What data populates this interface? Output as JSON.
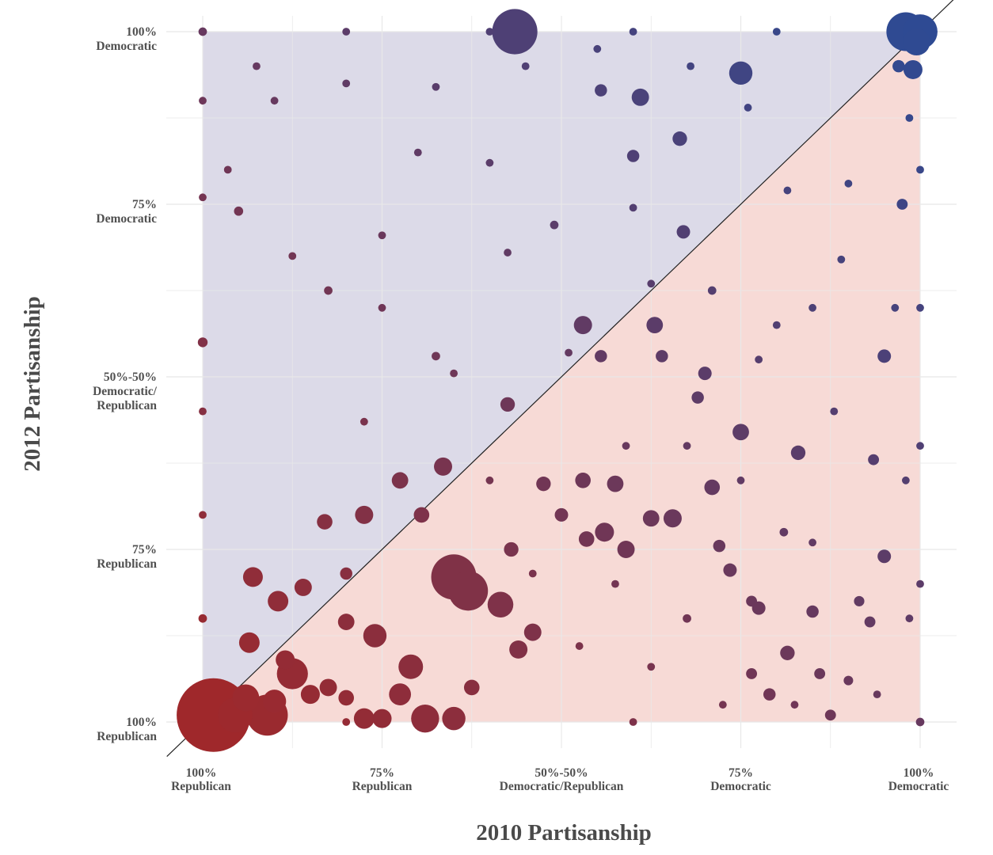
{
  "chart_data": {
    "type": "scatter",
    "title": "",
    "xlabel": "2010 Partisanship",
    "ylabel": "2012 Partisanship",
    "xlim": [
      -1,
      1
    ],
    "ylim": [
      -1,
      1
    ],
    "grid": true,
    "legend": "none",
    "reference_line": "y = x",
    "regions": [
      {
        "name": "above-diagonal",
        "color": "#dcdae8"
      },
      {
        "name": "below-diagonal",
        "color": "#f7dad6"
      }
    ],
    "colors": {
      "republican": "#a0282a",
      "democratic": "#2e4a93",
      "diagonal": "#222222",
      "grid": "#e8e8e8"
    },
    "x_ticks": [
      {
        "value": -1.0,
        "line1": "100%",
        "line2": "Republican"
      },
      {
        "value": -0.5,
        "line1": "75%",
        "line2": "Republican"
      },
      {
        "value": 0.0,
        "line1": "50%-50%",
        "line2": "Democratic/Republican"
      },
      {
        "value": 0.5,
        "line1": "75%",
        "line2": "Democratic"
      },
      {
        "value": 1.0,
        "line1": "100%",
        "line2": "Democratic"
      }
    ],
    "y_ticks": [
      {
        "value": 1.0,
        "lines": [
          "100%",
          "Democratic"
        ]
      },
      {
        "value": 0.5,
        "lines": [
          "75%",
          "Democratic"
        ]
      },
      {
        "value": 0.0,
        "lines": [
          "50%-50%",
          "Democratic/",
          "Republican"
        ]
      },
      {
        "value": -0.5,
        "lines": [
          "75%",
          "Republican"
        ]
      },
      {
        "value": -1.0,
        "lines": [
          "100%",
          "Republican"
        ]
      }
    ],
    "points": [
      {
        "x": -0.97,
        "y": -0.98,
        "size": 900
      },
      {
        "x": -0.88,
        "y": -0.93,
        "size": 120
      },
      {
        "x": -0.82,
        "y": -0.98,
        "size": 280
      },
      {
        "x": -0.91,
        "y": -0.98,
        "size": 200
      },
      {
        "x": -0.8,
        "y": -0.94,
        "size": 90
      },
      {
        "x": -0.75,
        "y": -0.86,
        "size": 160
      },
      {
        "x": -0.7,
        "y": -0.92,
        "size": 60
      },
      {
        "x": -0.65,
        "y": -0.9,
        "size": 50
      },
      {
        "x": -0.6,
        "y": -0.93,
        "size": 40
      },
      {
        "x": -0.55,
        "y": -0.99,
        "size": 70
      },
      {
        "x": -0.5,
        "y": -0.99,
        "size": 60
      },
      {
        "x": -0.45,
        "y": -0.92,
        "size": 80
      },
      {
        "x": -0.42,
        "y": -0.84,
        "size": 100
      },
      {
        "x": -0.38,
        "y": -0.99,
        "size": 130
      },
      {
        "x": -0.3,
        "y": -0.99,
        "size": 90
      },
      {
        "x": -0.25,
        "y": -0.9,
        "size": 40
      },
      {
        "x": -0.3,
        "y": -0.58,
        "size": 340
      },
      {
        "x": -0.26,
        "y": -0.62,
        "size": 260
      },
      {
        "x": -0.17,
        "y": -0.66,
        "size": 110
      },
      {
        "x": -0.33,
        "y": -0.26,
        "size": 55
      },
      {
        "x": -0.55,
        "y": -0.4,
        "size": 55
      },
      {
        "x": -0.66,
        "y": -0.42,
        "size": 40
      },
      {
        "x": -0.72,
        "y": -0.61,
        "size": 50
      },
      {
        "x": -0.86,
        "y": -0.58,
        "size": 65
      },
      {
        "x": -0.87,
        "y": -0.77,
        "size": 70
      },
      {
        "x": -0.52,
        "y": -0.75,
        "size": 90
      },
      {
        "x": -0.6,
        "y": -0.71,
        "size": 45
      },
      {
        "x": -0.12,
        "y": -0.79,
        "size": 55
      },
      {
        "x": -0.08,
        "y": -0.74,
        "size": 50
      },
      {
        "x": -0.14,
        "y": -0.5,
        "size": 35
      },
      {
        "x": 0.07,
        "y": -0.47,
        "size": 40
      },
      {
        "x": 0.12,
        "y": -0.45,
        "size": 60
      },
      {
        "x": 0.18,
        "y": -0.5,
        "size": 50
      },
      {
        "x": 0.25,
        "y": -0.41,
        "size": 45
      },
      {
        "x": 0.31,
        "y": -0.41,
        "size": 55
      },
      {
        "x": 0.06,
        "y": -0.3,
        "size": 40
      },
      {
        "x": -0.05,
        "y": -0.31,
        "size": 35
      },
      {
        "x": 0.0,
        "y": -0.4,
        "size": 30
      },
      {
        "x": 0.15,
        "y": -0.31,
        "size": 45
      },
      {
        "x": -0.15,
        "y": -0.08,
        "size": 35
      },
      {
        "x": 0.06,
        "y": 0.15,
        "size": 55
      },
      {
        "x": 0.11,
        "y": 0.06,
        "size": 25
      },
      {
        "x": 0.26,
        "y": 0.15,
        "size": 45
      },
      {
        "x": 0.28,
        "y": 0.06,
        "size": 25
      },
      {
        "x": 0.4,
        "y": 0.01,
        "size": 30
      },
      {
        "x": 0.5,
        "y": -0.16,
        "size": 45
      },
      {
        "x": 0.38,
        "y": -0.06,
        "size": 25
      },
      {
        "x": 0.42,
        "y": -0.32,
        "size": 40
      },
      {
        "x": 0.44,
        "y": -0.49,
        "size": 25
      },
      {
        "x": 0.55,
        "y": -0.67,
        "size": 30
      },
      {
        "x": 0.53,
        "y": -0.86,
        "size": 20
      },
      {
        "x": 0.63,
        "y": -0.8,
        "size": 35
      },
      {
        "x": 0.7,
        "y": -0.68,
        "size": 25
      },
      {
        "x": 0.72,
        "y": -0.86,
        "size": 20
      },
      {
        "x": 0.8,
        "y": -0.88,
        "size": 15
      },
      {
        "x": 0.86,
        "y": -0.71,
        "size": 20
      },
      {
        "x": 0.9,
        "y": -0.52,
        "size": 30
      },
      {
        "x": 0.87,
        "y": -0.24,
        "size": 20
      },
      {
        "x": 0.95,
        "y": 0.5,
        "size": 20
      },
      {
        "x": 0.9,
        "y": 0.06,
        "size": 30
      },
      {
        "x": 0.94,
        "y": 0.9,
        "size": 25
      },
      {
        "x": 0.96,
        "y": 1.0,
        "size": 250
      },
      {
        "x": 1.0,
        "y": 1.0,
        "size": 200
      },
      {
        "x": 0.99,
        "y": 0.97,
        "size": 120
      },
      {
        "x": 0.98,
        "y": 0.89,
        "size": 60
      },
      {
        "x": 0.5,
        "y": 0.88,
        "size": 90
      },
      {
        "x": -0.13,
        "y": 1.0,
        "size": 340
      },
      {
        "x": 0.22,
        "y": 0.81,
        "size": 50
      },
      {
        "x": 0.33,
        "y": 0.69,
        "size": 35
      },
      {
        "x": 0.2,
        "y": 0.64,
        "size": 25
      },
      {
        "x": 0.11,
        "y": 0.83,
        "size": 25
      },
      {
        "x": 0.34,
        "y": 0.42,
        "size": 30
      },
      {
        "x": -0.79,
        "y": -0.65,
        "size": 70
      },
      {
        "x": -0.6,
        "y": -0.57,
        "size": 25
      },
      {
        "x": -0.77,
        "y": -0.82,
        "size": 60
      },
      {
        "x": -0.45,
        "y": -0.3,
        "size": 45
      },
      {
        "x": -0.39,
        "y": -0.4,
        "size": 40
      },
      {
        "x": 0.66,
        "y": -0.22,
        "size": 35
      },
      {
        "x": 0.53,
        "y": -0.65,
        "size": 20
      },
      {
        "x": 0.47,
        "y": -0.56,
        "size": 30
      },
      {
        "x": 0.58,
        "y": -0.92,
        "size": 25
      },
      {
        "x": 0.75,
        "y": -0.98,
        "size": 20
      },
      {
        "x": 0.83,
        "y": -0.65,
        "size": 18
      },
      {
        "x": 0.42,
        "y": 0.25,
        "size": 12
      },
      {
        "x": 0.2,
        "y": 0.49,
        "size": 10
      },
      {
        "x": -0.02,
        "y": 0.44,
        "size": 12
      },
      {
        "x": -0.2,
        "y": 0.62,
        "size": 10
      },
      {
        "x": -0.35,
        "y": 0.06,
        "size": 12
      },
      {
        "x": -0.5,
        "y": 0.41,
        "size": 10
      },
      {
        "x": -0.65,
        "y": 0.25,
        "size": 12
      },
      {
        "x": -0.8,
        "y": 0.8,
        "size": 10
      },
      {
        "x": -0.9,
        "y": 0.48,
        "size": 14
      },
      {
        "x": -0.55,
        "y": -0.13,
        "size": 10
      },
      {
        "x": -0.3,
        "y": 0.01,
        "size": 10
      },
      {
        "x": 0.02,
        "y": 0.07,
        "size": 10
      },
      {
        "x": 0.25,
        "y": 0.27,
        "size": 10
      },
      {
        "x": 0.6,
        "y": 0.15,
        "size": 10
      },
      {
        "x": 0.7,
        "y": 0.2,
        "size": 10
      },
      {
        "x": 0.78,
        "y": 0.34,
        "size": 10
      },
      {
        "x": 0.62,
        "y": -0.45,
        "size": 12
      },
      {
        "x": 0.35,
        "y": -0.7,
        "size": 12
      },
      {
        "x": 0.15,
        "y": -0.6,
        "size": 10
      },
      {
        "x": -0.2,
        "y": -0.3,
        "size": 10
      },
      {
        "x": -0.08,
        "y": -0.57,
        "size": 10
      },
      {
        "x": 0.05,
        "y": -0.78,
        "size": 10
      },
      {
        "x": 0.25,
        "y": -0.84,
        "size": 10
      },
      {
        "x": 0.45,
        "y": -0.95,
        "size": 10
      },
      {
        "x": 0.65,
        "y": -0.95,
        "size": 10
      },
      {
        "x": 0.88,
        "y": -0.92,
        "size": 10
      },
      {
        "x": 0.97,
        "y": -0.7,
        "size": 10
      },
      {
        "x": 0.96,
        "y": -0.3,
        "size": 10
      },
      {
        "x": 0.93,
        "y": 0.2,
        "size": 10
      },
      {
        "x": 0.97,
        "y": 0.75,
        "size": 10
      },
      {
        "x": 0.8,
        "y": 0.56,
        "size": 10
      },
      {
        "x": 0.63,
        "y": 0.54,
        "size": 10
      },
      {
        "x": 0.52,
        "y": 0.78,
        "size": 10
      },
      {
        "x": 0.36,
        "y": 0.9,
        "size": 10
      },
      {
        "x": 0.1,
        "y": 0.95,
        "size": 10
      },
      {
        "x": -0.1,
        "y": 0.9,
        "size": 10
      },
      {
        "x": -0.35,
        "y": 0.84,
        "size": 10
      },
      {
        "x": -0.6,
        "y": 0.85,
        "size": 10
      },
      {
        "x": -0.85,
        "y": 0.9,
        "size": 10
      },
      {
        "x": -0.93,
        "y": 0.6,
        "size": 10
      },
      {
        "x": -0.75,
        "y": 0.35,
        "size": 10
      },
      {
        "x": -0.5,
        "y": 0.2,
        "size": 10
      },
      {
        "x": -0.4,
        "y": 0.65,
        "size": 10
      },
      {
        "x": -0.15,
        "y": 0.36,
        "size": 10
      },
      {
        "x": 0.18,
        "y": -0.2,
        "size": 10
      },
      {
        "x": 0.35,
        "y": -0.2,
        "size": 10
      },
      {
        "x": 0.5,
        "y": -0.3,
        "size": 10
      },
      {
        "x": 0.7,
        "y": -0.48,
        "size": 10
      },
      {
        "x": 0.76,
        "y": -0.1,
        "size": 10
      },
      {
        "x": 0.55,
        "y": 0.05,
        "size": 10
      },
      {
        "x": -1.0,
        "y": -0.7,
        "size": 12
      },
      {
        "x": -1.0,
        "y": -0.4,
        "size": 10
      },
      {
        "x": -1.0,
        "y": -0.1,
        "size": 10
      },
      {
        "x": -1.0,
        "y": 0.1,
        "size": 16
      },
      {
        "x": -1.0,
        "y": 0.52,
        "size": 10
      },
      {
        "x": -1.0,
        "y": 0.8,
        "size": 10
      },
      {
        "x": -1.0,
        "y": 1.0,
        "size": 12
      },
      {
        "x": 1.0,
        "y": -1.0,
        "size": 12
      },
      {
        "x": 1.0,
        "y": -0.6,
        "size": 10
      },
      {
        "x": 1.0,
        "y": -0.2,
        "size": 10
      },
      {
        "x": 1.0,
        "y": 0.2,
        "size": 10
      },
      {
        "x": 1.0,
        "y": 0.6,
        "size": 10
      },
      {
        "x": -0.6,
        "y": 1.0,
        "size": 10
      },
      {
        "x": -0.2,
        "y": 1.0,
        "size": 10
      },
      {
        "x": 0.2,
        "y": 1.0,
        "size": 10
      },
      {
        "x": 0.6,
        "y": 1.0,
        "size": 10
      },
      {
        "x": -0.6,
        "y": -1.0,
        "size": 10
      },
      {
        "x": 0.2,
        "y": -1.0,
        "size": 10
      }
    ]
  }
}
